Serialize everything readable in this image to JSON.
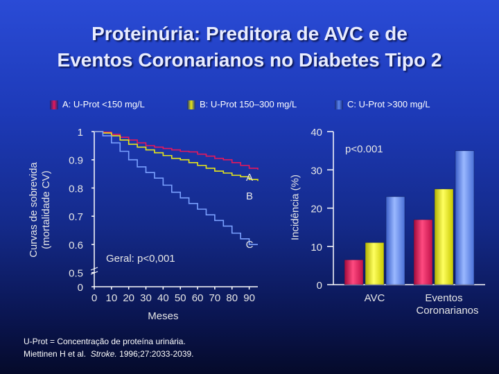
{
  "title": {
    "line1": "Proteinúria:  Preditora de  AVC e de",
    "line2": "Eventos Coronarianos no Diabetes Tipo 2"
  },
  "colors": {
    "A": "#e8185a",
    "B": "#e8e818",
    "C": "#5b87f0"
  },
  "legend": [
    {
      "key": "A",
      "label": "A: U-Prot <150 mg/L"
    },
    {
      "key": "B",
      "label": "B: U-Prot 150–300 mg/L"
    },
    {
      "key": "C",
      "label": "C: U-Prot >300 mg/L"
    }
  ],
  "footnotes": {
    "definition": "U-Prot = Concentração de proteína urinária.",
    "citation_prefix": "Miettinen H et al.",
    "citation_journal": "Stroke.",
    "citation_suffix": "1996;27:2033-2039."
  },
  "chart_data": [
    {
      "type": "line",
      "title": "",
      "xlabel": "Meses",
      "ylabel_line1": "Curvas de sobrevida",
      "ylabel_line2": "(mortalidade CV)",
      "xlim": [
        0,
        95
      ],
      "ylim": [
        0.45,
        1.0
      ],
      "xticks": [
        0,
        10,
        20,
        30,
        40,
        50,
        60,
        70,
        80,
        90
      ],
      "yticks": [
        {
          "value": 1.0,
          "label": "1"
        },
        {
          "value": 0.9,
          "label": "0.9"
        },
        {
          "value": 0.8,
          "label": "0.8"
        },
        {
          "value": 0.7,
          "label": "0.7"
        },
        {
          "value": 0.6,
          "label": "0.6"
        },
        {
          "value": 0.5,
          "label": "0.5"
        },
        {
          "value": 0.45,
          "label": "0"
        }
      ],
      "annotation": "Geral:  p<0,001",
      "series": [
        {
          "name": "A",
          "x": [
            0,
            5,
            10,
            15,
            20,
            25,
            30,
            35,
            40,
            45,
            50,
            55,
            60,
            65,
            70,
            75,
            80,
            85,
            90,
            95
          ],
          "y": [
            1.0,
            0.998,
            0.99,
            0.98,
            0.97,
            0.96,
            0.95,
            0.945,
            0.94,
            0.935,
            0.93,
            0.928,
            0.92,
            0.913,
            0.905,
            0.9,
            0.89,
            0.88,
            0.87,
            0.865
          ]
        },
        {
          "name": "B",
          "x": [
            0,
            5,
            10,
            15,
            20,
            25,
            30,
            35,
            40,
            45,
            50,
            55,
            60,
            65,
            70,
            75,
            80,
            85,
            90,
            95
          ],
          "y": [
            1.0,
            0.995,
            0.985,
            0.97,
            0.955,
            0.945,
            0.935,
            0.925,
            0.915,
            0.905,
            0.9,
            0.89,
            0.88,
            0.87,
            0.86,
            0.853,
            0.845,
            0.84,
            0.83,
            0.825
          ]
        },
        {
          "name": "C",
          "x": [
            0,
            5,
            10,
            15,
            20,
            25,
            30,
            35,
            40,
            45,
            50,
            55,
            60,
            65,
            70,
            75,
            80,
            85,
            90,
            95
          ],
          "y": [
            1.0,
            0.985,
            0.96,
            0.93,
            0.9,
            0.875,
            0.855,
            0.835,
            0.81,
            0.785,
            0.765,
            0.745,
            0.725,
            0.705,
            0.685,
            0.665,
            0.64,
            0.62,
            0.6,
            0.6
          ]
        }
      ],
      "curve_labels": [
        {
          "name": "A",
          "label": "A"
        },
        {
          "name": "B",
          "label": "B"
        },
        {
          "name": "C",
          "label": "C"
        }
      ]
    },
    {
      "type": "bar",
      "title": "",
      "xlabel": "",
      "ylabel": "Incidência (%)",
      "ylim": [
        0,
        40
      ],
      "yticks": [
        0,
        10,
        20,
        30,
        40
      ],
      "annotation": "p<0.001",
      "categories": [
        {
          "line1": "AVC",
          "line2": ""
        },
        {
          "line1": "Eventos",
          "line2": "Coronarianos"
        }
      ],
      "series": [
        {
          "name": "A",
          "values": [
            6.5,
            17
          ]
        },
        {
          "name": "B",
          "values": [
            11,
            25
          ]
        },
        {
          "name": "C",
          "values": [
            23,
            35
          ]
        }
      ]
    }
  ]
}
